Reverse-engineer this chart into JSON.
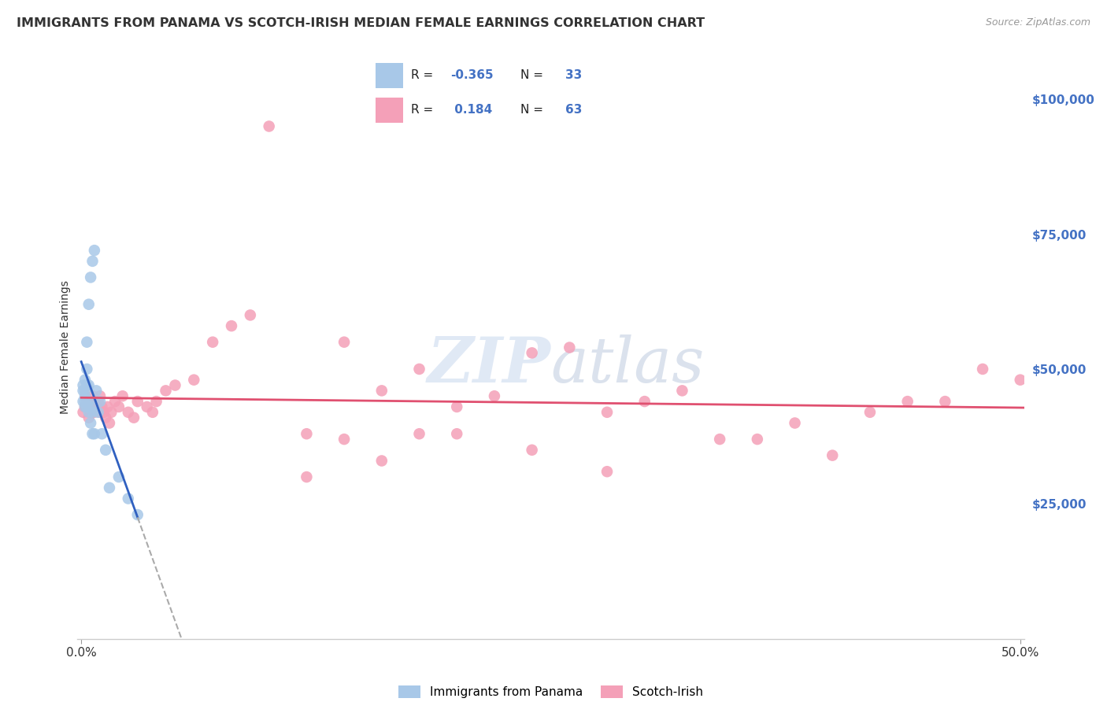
{
  "title": "IMMIGRANTS FROM PANAMA VS SCOTCH-IRISH MEDIAN FEMALE EARNINGS CORRELATION CHART",
  "source": "Source: ZipAtlas.com",
  "ylabel": "Median Female Earnings",
  "yticks": [
    25000,
    50000,
    75000,
    100000
  ],
  "ytick_labels": [
    "$25,000",
    "$50,000",
    "$75,000",
    "$100,000"
  ],
  "xlim": [
    -0.002,
    0.502
  ],
  "ylim": [
    0,
    108000
  ],
  "legend_labels": [
    "Immigrants from Panama",
    "Scotch-Irish"
  ],
  "r_panama": "-0.365",
  "n_panama": "33",
  "r_scotch": "0.184",
  "n_scotch": "63",
  "color_panama": "#a8c8e8",
  "color_scotch": "#f4a0b8",
  "line_color_panama": "#3060c0",
  "line_color_scotch": "#e05070",
  "tick_color": "#4472c4",
  "background_color": "#ffffff",
  "grid_color": "#d8d8d8",
  "panama_x": [
    0.001,
    0.001,
    0.001,
    0.002,
    0.002,
    0.002,
    0.002,
    0.002,
    0.003,
    0.003,
    0.003,
    0.003,
    0.004,
    0.004,
    0.004,
    0.004,
    0.005,
    0.005,
    0.005,
    0.006,
    0.006,
    0.006,
    0.007,
    0.007,
    0.008,
    0.009,
    0.01,
    0.011,
    0.013,
    0.015,
    0.02,
    0.025,
    0.03
  ],
  "panama_y": [
    44000,
    46000,
    47000,
    43000,
    44000,
    45000,
    46000,
    48000,
    43000,
    47000,
    50000,
    55000,
    42000,
    44000,
    47000,
    62000,
    40000,
    43000,
    67000,
    38000,
    42000,
    70000,
    38000,
    72000,
    46000,
    42000,
    44000,
    38000,
    35000,
    28000,
    30000,
    26000,
    23000
  ],
  "scotch_x": [
    0.001,
    0.002,
    0.003,
    0.004,
    0.004,
    0.005,
    0.005,
    0.006,
    0.006,
    0.007,
    0.008,
    0.009,
    0.01,
    0.01,
    0.011,
    0.012,
    0.013,
    0.014,
    0.015,
    0.016,
    0.018,
    0.02,
    0.022,
    0.025,
    0.028,
    0.03,
    0.035,
    0.038,
    0.04,
    0.045,
    0.05,
    0.06,
    0.07,
    0.08,
    0.09,
    0.1,
    0.12,
    0.14,
    0.16,
    0.18,
    0.2,
    0.22,
    0.24,
    0.26,
    0.28,
    0.3,
    0.32,
    0.34,
    0.36,
    0.38,
    0.4,
    0.42,
    0.44,
    0.46,
    0.48,
    0.5,
    0.12,
    0.16,
    0.2,
    0.24,
    0.28,
    0.14,
    0.18
  ],
  "scotch_y": [
    42000,
    43000,
    44000,
    41000,
    43000,
    42000,
    44000,
    43000,
    45000,
    42000,
    43000,
    44000,
    42000,
    45000,
    43000,
    42000,
    41000,
    43000,
    40000,
    42000,
    44000,
    43000,
    45000,
    42000,
    41000,
    44000,
    43000,
    42000,
    44000,
    46000,
    47000,
    48000,
    55000,
    58000,
    60000,
    95000,
    38000,
    55000,
    46000,
    50000,
    43000,
    45000,
    53000,
    54000,
    42000,
    44000,
    46000,
    37000,
    37000,
    40000,
    34000,
    42000,
    44000,
    44000,
    50000,
    48000,
    30000,
    33000,
    38000,
    35000,
    31000,
    37000,
    38000
  ]
}
